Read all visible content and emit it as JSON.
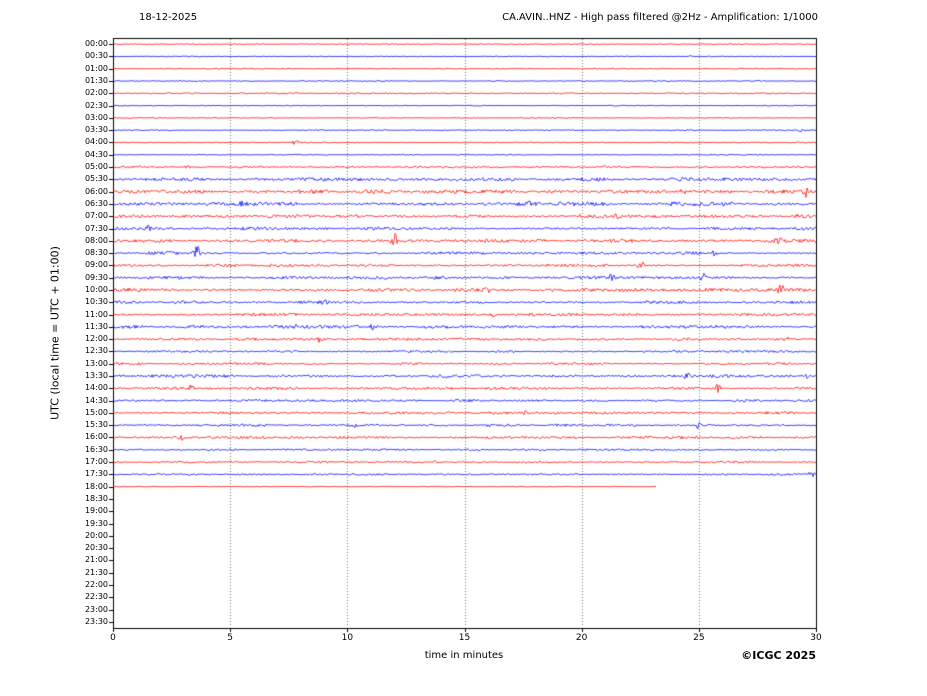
{
  "header": {
    "date": "18-12-2025",
    "title": "CA.AVIN..HNZ - High pass filtered @2Hz - Amplification: 1/1000"
  },
  "axes": {
    "ylabel": "UTC (local time = UTC + 01:00)",
    "xlabel": "time in minutes",
    "xticks": [
      0,
      5,
      10,
      15,
      20,
      25,
      30
    ],
    "xlim": [
      0,
      30
    ]
  },
  "footer": {
    "copyright": "©ICGC 2025"
  },
  "chart_data": {
    "type": "line",
    "title": "CA.AVIN..HNZ - High pass filtered @2Hz - Amplification: 1/1000",
    "xlabel": "time in minutes",
    "ylabel": "UTC (local time = UTC + 01:00)",
    "xlim": [
      0,
      30
    ],
    "grid": "dotted-vertical-at-5min",
    "legend": "none",
    "colors": {
      "r": "#ff0000",
      "b": "#0000ff"
    },
    "rows": [
      {
        "t": "00:00",
        "c": "r",
        "n": 0.35,
        "end": 30,
        "ev": []
      },
      {
        "t": "00:30",
        "c": "b",
        "n": 0.35,
        "end": 30,
        "ev": [
          [
            24.6,
            1.2
          ]
        ]
      },
      {
        "t": "01:00",
        "c": "r",
        "n": 0.4,
        "end": 30,
        "ev": []
      },
      {
        "t": "01:30",
        "c": "b",
        "n": 0.45,
        "end": 30,
        "ev": []
      },
      {
        "t": "02:00",
        "c": "r",
        "n": 0.45,
        "end": 30,
        "ev": []
      },
      {
        "t": "02:30",
        "c": "b",
        "n": 0.35,
        "end": 30,
        "ev": []
      },
      {
        "t": "03:00",
        "c": "r",
        "n": 0.35,
        "end": 30,
        "ev": []
      },
      {
        "t": "03:30",
        "c": "b",
        "n": 0.4,
        "end": 30,
        "ev": [
          [
            29.4,
            1.8
          ]
        ]
      },
      {
        "t": "04:00",
        "c": "r",
        "n": 0.4,
        "end": 30,
        "ev": [
          [
            7.8,
            2.8
          ]
        ]
      },
      {
        "t": "04:30",
        "c": "b",
        "n": 0.35,
        "end": 30,
        "ev": []
      },
      {
        "t": "05:00",
        "c": "r",
        "n": 0.8,
        "end": 30,
        "ev": [
          [
            3.2,
            1.2
          ],
          [
            21.0,
            1.0
          ]
        ]
      },
      {
        "t": "05:30",
        "c": "b",
        "n": 1.3,
        "end": 30,
        "ev": []
      },
      {
        "t": "06:00",
        "c": "r",
        "n": 1.4,
        "end": 30,
        "ev": [
          [
            24.3,
            3.0
          ],
          [
            29.6,
            5.0
          ]
        ]
      },
      {
        "t": "06:30",
        "c": "b",
        "n": 1.4,
        "end": 30,
        "ev": [
          [
            5.5,
            2.2
          ],
          [
            17.8,
            2.0
          ]
        ]
      },
      {
        "t": "07:00",
        "c": "r",
        "n": 1.3,
        "end": 30,
        "ev": [
          [
            18.1,
            2.2
          ],
          [
            21.5,
            2.8
          ]
        ]
      },
      {
        "t": "07:30",
        "c": "b",
        "n": 1.1,
        "end": 30,
        "ev": [
          [
            1.5,
            2.4
          ]
        ]
      },
      {
        "t": "08:00",
        "c": "r",
        "n": 1.2,
        "end": 30,
        "ev": [
          [
            12.0,
            7.5
          ],
          [
            28.4,
            3.2
          ]
        ]
      },
      {
        "t": "08:30",
        "c": "b",
        "n": 1.1,
        "end": 30,
        "ev": [
          [
            3.6,
            6.5
          ],
          [
            25.7,
            3.2
          ]
        ]
      },
      {
        "t": "09:00",
        "c": "r",
        "n": 1.1,
        "end": 30,
        "ev": [
          [
            22.5,
            7.5
          ]
        ]
      },
      {
        "t": "09:30",
        "c": "b",
        "n": 1.1,
        "end": 30,
        "ev": [
          [
            21.3,
            4.0
          ],
          [
            25.2,
            3.8
          ]
        ]
      },
      {
        "t": "10:00",
        "c": "r",
        "n": 1.2,
        "end": 30,
        "ev": [
          [
            16.0,
            2.8
          ],
          [
            28.5,
            7.0
          ]
        ]
      },
      {
        "t": "10:30",
        "c": "b",
        "n": 1.1,
        "end": 30,
        "ev": [
          [
            9.0,
            2.0
          ]
        ]
      },
      {
        "t": "11:00",
        "c": "r",
        "n": 1.1,
        "end": 30,
        "ev": [
          [
            16.2,
            2.8
          ]
        ]
      },
      {
        "t": "11:30",
        "c": "b",
        "n": 1.2,
        "end": 30,
        "ev": [
          [
            7.9,
            2.4
          ],
          [
            11.1,
            2.8
          ]
        ]
      },
      {
        "t": "12:00",
        "c": "r",
        "n": 1.0,
        "end": 30,
        "ev": [
          [
            8.8,
            2.4
          ],
          [
            28.7,
            2.4
          ]
        ]
      },
      {
        "t": "12:30",
        "c": "b",
        "n": 0.8,
        "end": 30,
        "ev": []
      },
      {
        "t": "13:00",
        "c": "r",
        "n": 0.9,
        "end": 30,
        "ev": []
      },
      {
        "t": "13:30",
        "c": "b",
        "n": 1.1,
        "end": 30,
        "ev": [
          [
            14.2,
            2.4
          ],
          [
            24.5,
            3.2
          ],
          [
            29.6,
            2.4
          ]
        ]
      },
      {
        "t": "14:00",
        "c": "r",
        "n": 1.0,
        "end": 30,
        "ev": [
          [
            3.3,
            3.2
          ],
          [
            25.8,
            4.2
          ]
        ]
      },
      {
        "t": "14:30",
        "c": "b",
        "n": 0.9,
        "end": 30,
        "ev": []
      },
      {
        "t": "15:00",
        "c": "r",
        "n": 0.9,
        "end": 30,
        "ev": [
          [
            17.6,
            1.4
          ],
          [
            18.9,
            1.4
          ]
        ]
      },
      {
        "t": "15:30",
        "c": "b",
        "n": 0.9,
        "end": 30,
        "ev": [
          [
            10.3,
            2.2
          ],
          [
            25.0,
            3.2
          ]
        ]
      },
      {
        "t": "16:00",
        "c": "r",
        "n": 0.9,
        "end": 30,
        "ev": [
          [
            2.9,
            3.2
          ]
        ]
      },
      {
        "t": "16:30",
        "c": "b",
        "n": 0.7,
        "end": 30,
        "ev": []
      },
      {
        "t": "17:00",
        "c": "r",
        "n": 0.7,
        "end": 30,
        "ev": [
          [
            13.7,
            1.4
          ]
        ]
      },
      {
        "t": "17:30",
        "c": "b",
        "n": 0.7,
        "end": 30,
        "ev": [
          [
            29.8,
            2.6
          ]
        ]
      },
      {
        "t": "18:00",
        "c": "r",
        "n": 0.25,
        "end": 23.2,
        "ev": []
      },
      {
        "t": "18:30",
        "c": "b",
        "n": 0,
        "end": 0,
        "ev": []
      },
      {
        "t": "19:00",
        "c": "r",
        "n": 0,
        "end": 0,
        "ev": []
      },
      {
        "t": "19:30",
        "c": "b",
        "n": 0,
        "end": 0,
        "ev": []
      },
      {
        "t": "20:00",
        "c": "r",
        "n": 0,
        "end": 0,
        "ev": []
      },
      {
        "t": "20:30",
        "c": "b",
        "n": 0,
        "end": 0,
        "ev": []
      },
      {
        "t": "21:00",
        "c": "r",
        "n": 0,
        "end": 0,
        "ev": []
      },
      {
        "t": "21:30",
        "c": "b",
        "n": 0,
        "end": 0,
        "ev": []
      },
      {
        "t": "22:00",
        "c": "r",
        "n": 0,
        "end": 0,
        "ev": []
      },
      {
        "t": "22:30",
        "c": "b",
        "n": 0,
        "end": 0,
        "ev": []
      },
      {
        "t": "23:00",
        "c": "r",
        "n": 0,
        "end": 0,
        "ev": []
      },
      {
        "t": "23:30",
        "c": "b",
        "n": 0,
        "end": 0,
        "ev": []
      }
    ]
  }
}
